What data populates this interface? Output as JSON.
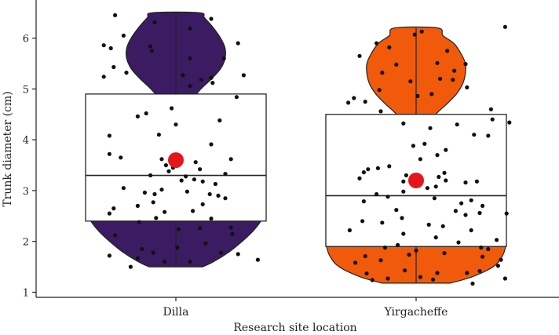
{
  "chart_data": {
    "type": "violin-box-jitter",
    "xlabel": "Research site location",
    "ylabel": "Trunk diameter (cm)",
    "ylim": [
      0.9,
      6.75
    ],
    "yticks": [
      1,
      2,
      3,
      4,
      5,
      6
    ],
    "categories": [
      "Dilla",
      "Yirgacheffe"
    ],
    "grid": false,
    "legend": "none",
    "series": [
      {
        "category": "Dilla",
        "color": "#3b1c63",
        "min": 1.5,
        "max": 6.5,
        "q1": 2.4,
        "median": 3.3,
        "q3": 4.9,
        "mean": 3.6,
        "violin_profile": [
          [
            1.5,
            0.3
          ],
          [
            1.6,
            0.42
          ],
          [
            1.8,
            0.6
          ],
          [
            2.0,
            0.74
          ],
          [
            2.2,
            0.86
          ],
          [
            2.4,
            0.95
          ],
          [
            2.6,
            1.0
          ],
          [
            2.8,
            1.0
          ],
          [
            3.0,
            0.95
          ],
          [
            3.2,
            0.83
          ],
          [
            3.4,
            0.6
          ],
          [
            3.6,
            0.42
          ],
          [
            3.8,
            0.3
          ],
          [
            4.0,
            0.22
          ],
          [
            4.2,
            0.18
          ],
          [
            4.4,
            0.16
          ],
          [
            4.6,
            0.16
          ],
          [
            4.8,
            0.19
          ],
          [
            5.0,
            0.28
          ],
          [
            5.2,
            0.4
          ],
          [
            5.4,
            0.5
          ],
          [
            5.6,
            0.55
          ],
          [
            5.8,
            0.55
          ],
          [
            6.0,
            0.5
          ],
          [
            6.2,
            0.42
          ],
          [
            6.4,
            0.32
          ],
          [
            6.5,
            0.26
          ]
        ],
        "points": [
          [
            -0.43,
            6.45
          ],
          [
            0.25,
            6.38
          ],
          [
            -0.15,
            6.31
          ],
          [
            0.1,
            6.19
          ],
          [
            -0.37,
            6.05
          ],
          [
            -0.51,
            5.86
          ],
          [
            0.44,
            5.9
          ],
          [
            -0.18,
            5.84
          ],
          [
            -0.46,
            5.8
          ],
          [
            -0.17,
            5.75
          ],
          [
            0.1,
            5.6
          ],
          [
            0.34,
            5.6
          ],
          [
            -0.44,
            5.43
          ],
          [
            -0.35,
            5.32
          ],
          [
            0.05,
            5.27
          ],
          [
            0.25,
            5.22
          ],
          [
            0.18,
            5.18
          ],
          [
            -0.51,
            5.24
          ],
          [
            0.26,
            5.12
          ],
          [
            0.48,
            5.27
          ],
          [
            0.1,
            5.06
          ],
          [
            0.43,
            4.84
          ],
          [
            -0.03,
            4.62
          ],
          [
            -0.21,
            4.52
          ],
          [
            -0.27,
            4.46
          ],
          [
            0.31,
            4.38
          ],
          [
            0.0,
            4.3
          ],
          [
            -0.47,
            4.08
          ],
          [
            -0.12,
            4.1
          ],
          [
            0.25,
            3.91
          ],
          [
            -0.47,
            3.72
          ],
          [
            -0.39,
            3.65
          ],
          [
            -0.1,
            3.62
          ],
          [
            0.39,
            3.62
          ],
          [
            -0.07,
            3.5
          ],
          [
            0.14,
            3.56
          ],
          [
            -0.02,
            3.45
          ],
          [
            -0.05,
            3.38
          ],
          [
            0.17,
            3.42
          ],
          [
            0.35,
            3.33
          ],
          [
            -0.18,
            3.3
          ],
          [
            0.07,
            3.28
          ],
          [
            0.04,
            3.2
          ],
          [
            0.13,
            3.22
          ],
          [
            0.19,
            3.18
          ],
          [
            -0.37,
            3.05
          ],
          [
            0.28,
            3.13
          ],
          [
            -0.1,
            3.02
          ],
          [
            -0.22,
            2.96
          ],
          [
            0.08,
            2.98
          ],
          [
            -0.15,
            2.93
          ],
          [
            0.24,
            2.93
          ],
          [
            0.35,
            2.85
          ],
          [
            0.3,
            2.9
          ],
          [
            -0.16,
            2.77
          ],
          [
            -0.27,
            2.7
          ],
          [
            0.19,
            2.73
          ],
          [
            -0.44,
            2.65
          ],
          [
            -0.47,
            2.55
          ],
          [
            -0.08,
            2.58
          ],
          [
            0.12,
            2.6
          ],
          [
            -0.14,
            2.46
          ],
          [
            0.25,
            2.45
          ],
          [
            -0.26,
            2.38
          ],
          [
            0.02,
            2.24
          ],
          [
            0.17,
            2.26
          ],
          [
            0.39,
            2.27
          ],
          [
            -0.43,
            2.12
          ],
          [
            0.4,
            2.15
          ],
          [
            0.21,
            1.96
          ],
          [
            0.01,
            1.88
          ],
          [
            -0.24,
            1.85
          ],
          [
            -0.16,
            1.78
          ],
          [
            0.32,
            1.78
          ],
          [
            -0.47,
            1.72
          ],
          [
            0.44,
            1.75
          ],
          [
            -0.27,
            1.67
          ],
          [
            -0.08,
            1.6
          ],
          [
            0.1,
            1.6
          ],
          [
            0.58,
            1.64
          ],
          [
            -0.32,
            1.5
          ]
        ]
      },
      {
        "category": "Yirgacheffe",
        "color": "#f05a0a",
        "min": 1.18,
        "max": 6.2,
        "q1": 1.9,
        "median": 2.9,
        "q3": 4.5,
        "mean": 3.2,
        "violin_profile": [
          [
            1.18,
            0.38
          ],
          [
            1.3,
            0.62
          ],
          [
            1.5,
            0.86
          ],
          [
            1.7,
            0.96
          ],
          [
            1.9,
            1.0
          ],
          [
            2.1,
            1.0
          ],
          [
            2.3,
            0.97
          ],
          [
            2.5,
            0.92
          ],
          [
            2.7,
            0.84
          ],
          [
            2.9,
            0.66
          ],
          [
            3.1,
            0.45
          ],
          [
            3.3,
            0.32
          ],
          [
            3.5,
            0.23
          ],
          [
            3.7,
            0.18
          ],
          [
            3.9,
            0.16
          ],
          [
            4.1,
            0.15
          ],
          [
            4.3,
            0.16
          ],
          [
            4.5,
            0.22
          ],
          [
            4.7,
            0.34
          ],
          [
            4.9,
            0.45
          ],
          [
            5.1,
            0.52
          ],
          [
            5.3,
            0.55
          ],
          [
            5.5,
            0.55
          ],
          [
            5.7,
            0.5
          ],
          [
            5.9,
            0.42
          ],
          [
            6.05,
            0.3
          ],
          [
            6.2,
            0.24
          ]
        ],
        "points": [
          [
            0.63,
            6.22
          ],
          [
            0.04,
            6.13
          ],
          [
            -0.01,
            6.07
          ],
          [
            -0.28,
            5.9
          ],
          [
            -0.19,
            5.82
          ],
          [
            0.22,
            5.75
          ],
          [
            -0.4,
            5.65
          ],
          [
            0.15,
            5.51
          ],
          [
            -0.14,
            5.48
          ],
          [
            0.35,
            5.49
          ],
          [
            0.27,
            5.36
          ],
          [
            -0.24,
            5.32
          ],
          [
            0.17,
            5.2
          ],
          [
            0.26,
            5.18
          ],
          [
            -0.04,
            5.15
          ],
          [
            0.36,
            5.03
          ],
          [
            -0.26,
            4.98
          ],
          [
            -0.44,
            4.82
          ],
          [
            0.01,
            4.86
          ],
          [
            0.11,
            4.9
          ],
          [
            -0.48,
            4.73
          ],
          [
            -0.36,
            4.75
          ],
          [
            0.53,
            4.6
          ],
          [
            -0.25,
            4.56
          ],
          [
            0.54,
            4.4
          ],
          [
            0.66,
            4.34
          ],
          [
            0.29,
            4.3
          ],
          [
            -0.09,
            4.32
          ],
          [
            0.1,
            4.23
          ],
          [
            0.41,
            4.1
          ],
          [
            0.51,
            4.08
          ],
          [
            0.06,
            3.92
          ],
          [
            -0.02,
            3.88
          ],
          [
            0.21,
            3.8
          ],
          [
            0.15,
            3.7
          ],
          [
            0.03,
            3.62
          ],
          [
            -0.19,
            3.48
          ],
          [
            -0.27,
            3.44
          ],
          [
            -0.34,
            3.42
          ],
          [
            -0.37,
            3.36
          ],
          [
            0.2,
            3.35
          ],
          [
            -0.07,
            3.3
          ],
          [
            0.16,
            3.27
          ],
          [
            -0.4,
            3.24
          ],
          [
            -0.09,
            3.18
          ],
          [
            0.21,
            3.2
          ],
          [
            0.35,
            3.16
          ],
          [
            0.43,
            3.18
          ],
          [
            0.08,
            3.05
          ],
          [
            0.14,
            3.08
          ],
          [
            -0.09,
            2.98
          ],
          [
            -0.28,
            2.93
          ],
          [
            -0.2,
            2.88
          ],
          [
            0.13,
            2.85
          ],
          [
            0.39,
            2.81
          ],
          [
            -0.37,
            2.79
          ],
          [
            0.32,
            2.75
          ],
          [
            0.47,
            2.7
          ],
          [
            -0.14,
            2.62
          ],
          [
            0.28,
            2.6
          ],
          [
            0.35,
            2.52
          ],
          [
            0.45,
            2.56
          ],
          [
            0.64,
            2.55
          ],
          [
            -0.1,
            2.46
          ],
          [
            -0.38,
            2.4
          ],
          [
            -0.24,
            2.37
          ],
          [
            0.09,
            2.33
          ],
          [
            0.19,
            2.3
          ],
          [
            -0.47,
            2.22
          ],
          [
            0.39,
            2.22
          ],
          [
            -0.09,
            2.15
          ],
          [
            0.14,
            2.08
          ],
          [
            0.57,
            2.03
          ],
          [
            0.3,
            1.98
          ],
          [
            -0.13,
            1.93
          ],
          [
            -0.22,
            1.88
          ],
          [
            0.46,
            1.88
          ],
          [
            0.51,
            1.85
          ],
          [
            0.0,
            1.82
          ],
          [
            0.2,
            1.77
          ],
          [
            -0.05,
            1.74
          ],
          [
            0.47,
            1.7
          ],
          [
            -0.36,
            1.71
          ],
          [
            -0.25,
            1.63
          ],
          [
            0.6,
            1.64
          ],
          [
            -0.43,
            1.58
          ],
          [
            0.58,
            1.52
          ],
          [
            -0.08,
            1.43
          ],
          [
            0.15,
            1.38
          ],
          [
            -0.35,
            1.37
          ],
          [
            0.36,
            1.38
          ],
          [
            0.45,
            1.42
          ],
          [
            0.03,
            1.3
          ],
          [
            -0.2,
            1.27
          ],
          [
            0.63,
            1.27
          ],
          [
            0.12,
            1.25
          ],
          [
            -0.31,
            1.24
          ],
          [
            0.4,
            1.17
          ]
        ]
      }
    ]
  }
}
